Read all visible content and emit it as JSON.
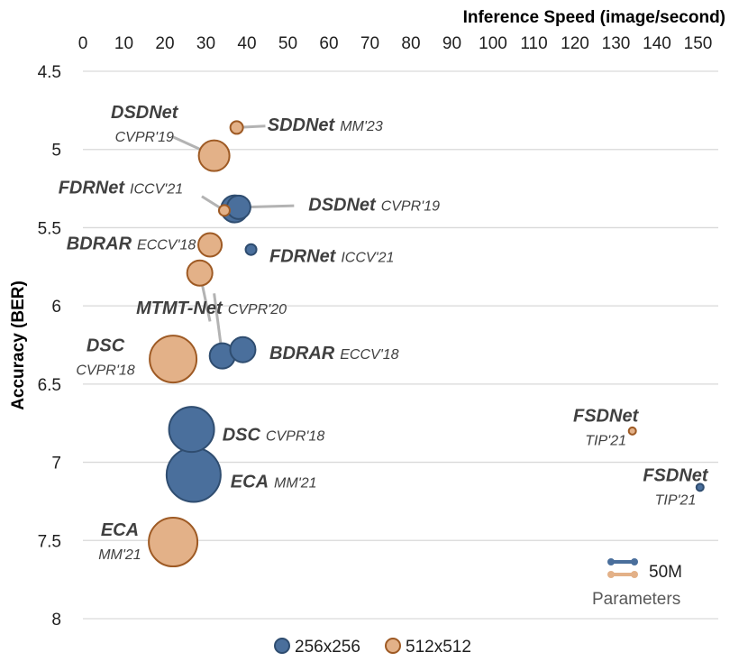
{
  "chart_data": {
    "type": "scatter",
    "subtype": "bubble",
    "xlabel": "Inference Speed (image/second)",
    "ylabel": "Accuracy (BER)",
    "xlim": [
      0,
      155
    ],
    "ylim": [
      4.5,
      8
    ],
    "y_inverted": true,
    "x_ticks": [
      0,
      10,
      20,
      30,
      40,
      50,
      60,
      70,
      80,
      90,
      100,
      110,
      120,
      130,
      140,
      150
    ],
    "y_ticks": [
      4.5,
      5,
      5.5,
      6,
      6.5,
      7,
      7.5,
      8
    ],
    "y_tick_labels": [
      "4.5",
      "5",
      "5.5",
      "6",
      "6.5",
      "7",
      "7.5",
      "8"
    ],
    "grid": "horizontal",
    "series": [
      {
        "name": "256x256",
        "color": "#4a6f9c",
        "edge": "#2f4d70",
        "points": [
          {
            "model": "SDDNet",
            "venue": "MM'23",
            "x": 37,
            "y": 5.38,
            "size": 15
          },
          {
            "model": "DSDNet",
            "venue": "CVPR'19",
            "x": 38,
            "y": 5.37,
            "size": 13
          },
          {
            "model": "FDRNet",
            "venue": "ICCV'21",
            "x": 41,
            "y": 5.64,
            "size": 6
          },
          {
            "model": "MTMT-Net",
            "venue": "CVPR'20",
            "x": 34,
            "y": 6.32,
            "size": 14
          },
          {
            "model": "BDRAR",
            "venue": "ECCV'18",
            "x": 39,
            "y": 6.28,
            "size": 14
          },
          {
            "model": "DSC",
            "venue": "CVPR'18",
            "x": 26.5,
            "y": 6.79,
            "size": 25
          },
          {
            "model": "ECA",
            "venue": "MM'21",
            "x": 27,
            "y": 7.08,
            "size": 30
          },
          {
            "model": "FSDNet",
            "venue": "TIP'21",
            "x": 150.5,
            "y": 7.16,
            "size": 4
          }
        ]
      },
      {
        "name": "512x512",
        "color": "#e3b188",
        "edge": "#9e5a24",
        "points": [
          {
            "model": "SDDNet",
            "venue": "MM'23",
            "x": 37.5,
            "y": 4.86,
            "size": 7
          },
          {
            "model": "DSDNet",
            "venue": "CVPR'19",
            "x": 32,
            "y": 5.04,
            "size": 17
          },
          {
            "model": "FDRNet",
            "venue": "ICCV'21",
            "x": 34.5,
            "y": 5.39,
            "size": 6
          },
          {
            "model": "BDRAR",
            "venue": "ECCV'18",
            "x": 31,
            "y": 5.61,
            "size": 13
          },
          {
            "model": "MTMT-Net",
            "venue": "CVPR'20",
            "x": 28.5,
            "y": 5.79,
            "size": 14
          },
          {
            "model": "DSC",
            "venue": "CVPR'18",
            "x": 22,
            "y": 6.34,
            "size": 26
          },
          {
            "model": "ECA",
            "venue": "MM'21",
            "x": 22,
            "y": 7.51,
            "size": 27
          },
          {
            "model": "FSDNet",
            "venue": "TIP'21",
            "x": 134,
            "y": 6.8,
            "size": 4
          }
        ]
      }
    ],
    "legend": {
      "position": "bottom-center",
      "items": [
        "256x256",
        "512x512"
      ]
    },
    "size_legend": {
      "position": "bottom-right",
      "value_label": "50M",
      "caption": "Parameters"
    },
    "annotations": [
      {
        "model": "DSDNet",
        "venue": "CVPR'19",
        "series": "512x512",
        "layout": "stacked",
        "text_at": [
          15,
          4.8
        ],
        "leader_from": [
          22,
          4.92
        ]
      },
      {
        "model": "SDDNet",
        "venue": "MM'23",
        "series": "512x512",
        "layout": "inline",
        "text_at": [
          45,
          4.88
        ],
        "leader_from": [
          44.5,
          4.85
        ]
      },
      {
        "model": "FDRNet",
        "venue": "ICCV'21",
        "series": "512x512",
        "layout": "inline",
        "text_at": [
          -6,
          5.28
        ],
        "leader_from": [
          29,
          5.3
        ]
      },
      {
        "model": "DSDNet",
        "venue": "CVPR'19",
        "series": "256x256",
        "layout": "inline",
        "text_at": [
          55,
          5.39
        ],
        "leader_from": [
          51.5,
          5.36
        ]
      },
      {
        "model": "BDRAR",
        "venue": "ECCV'18",
        "series": "512x512",
        "layout": "inline",
        "text_at": [
          -4,
          5.64
        ],
        "leader_from": null
      },
      {
        "model": "FDRNet",
        "venue": "ICCV'21",
        "series": "256x256",
        "layout": "inline",
        "text_at": [
          45.5,
          5.72
        ],
        "leader_from": null
      },
      {
        "model": "MTMT-Net",
        "venue": "CVPR'20",
        "series": "256x256",
        "layout": "inline",
        "text_at": [
          13,
          6.05
        ],
        "leader_from": [
          32,
          5.92
        ]
      },
      {
        "model": "MTMT-Net",
        "venue": "CVPR'20",
        "series": "512x512",
        "layout": "none",
        "text_at": null,
        "leader_from": [
          31,
          6.1
        ]
      },
      {
        "model": "BDRAR",
        "venue": "ECCV'18",
        "series": "256x256",
        "layout": "inline",
        "text_at": [
          45.5,
          6.34
        ],
        "leader_from": null
      },
      {
        "model": "DSC",
        "venue": "CVPR'18",
        "series": "512x512",
        "layout": "stacked",
        "text_at": [
          5.5,
          6.29
        ],
        "leader_from": null
      },
      {
        "model": "DSC",
        "venue": "CVPR'18",
        "series": "256x256",
        "layout": "inline",
        "text_at": [
          34,
          6.86
        ],
        "leader_from": null
      },
      {
        "model": "ECA",
        "venue": "MM'21",
        "series": "256x256",
        "layout": "inline",
        "text_at": [
          36,
          7.16
        ],
        "leader_from": null
      },
      {
        "model": "ECA",
        "venue": "MM'21",
        "series": "512x512",
        "layout": "stacked",
        "text_at": [
          9,
          7.47
        ],
        "leader_from": null
      },
      {
        "model": "FSDNet",
        "venue": "TIP'21",
        "series": "512x512",
        "layout": "stacked",
        "text_at": [
          127.5,
          6.74
        ],
        "leader_from": null
      },
      {
        "model": "FSDNet",
        "venue": "TIP'21",
        "series": "256x256",
        "layout": "stacked",
        "text_at": [
          144.5,
          7.12
        ],
        "leader_from": null
      }
    ]
  }
}
